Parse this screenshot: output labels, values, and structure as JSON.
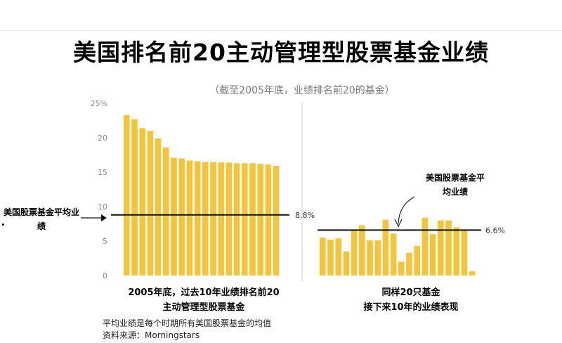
{
  "title": "美国排名前20主动管理型股票基金业绩",
  "subtitle": "（截至2005年底，业绩排名前20的基金）",
  "left_note": "美国股票基金平均业绩",
  "caption_left_line1": "2005年底，过去10年业绩排名前20",
  "caption_left_line2": "主动管理型股票基金",
  "caption_right_line1": "同样20只基金",
  "caption_right_line2": "接下来10年的业绩表现",
  "footnote_1": "平均业绩是每个时期所有美国股票基金的均值",
  "footnote_2": "资料来源：Morningstars",
  "colors": {
    "bar": "#f4c43a",
    "avg_line": "#111111",
    "axis_text": "#888888",
    "divider": "#cccccc"
  },
  "chart_data": {
    "type": "bar",
    "ylim": [
      0,
      25
    ],
    "yticks": [
      "0",
      "5",
      "10",
      "15",
      "20",
      "25%"
    ],
    "grid": false,
    "panels": [
      {
        "name": "2005年底，过去10年业绩排名前20主动管理型股票基金",
        "values": [
          23.3,
          22.7,
          21.4,
          21.0,
          19.9,
          18.6,
          17.1,
          17.0,
          16.7,
          16.6,
          16.5,
          16.5,
          16.4,
          16.4,
          16.3,
          16.3,
          16.3,
          16.2,
          16.1,
          15.9
        ],
        "average": 8.8,
        "average_label": "8.8%"
      },
      {
        "name": "同样20只基金接下来10年的业绩表现",
        "values": [
          5.5,
          5.2,
          5.4,
          3.5,
          6.7,
          7.3,
          5.1,
          5.1,
          8.1,
          6.1,
          2.0,
          3.3,
          4.3,
          8.4,
          6.0,
          8.0,
          8.0,
          7.0,
          6.5,
          0.6
        ],
        "average": 6.6,
        "average_label": "6.6%",
        "annotation": "美国股票基金平均业绩"
      }
    ]
  }
}
